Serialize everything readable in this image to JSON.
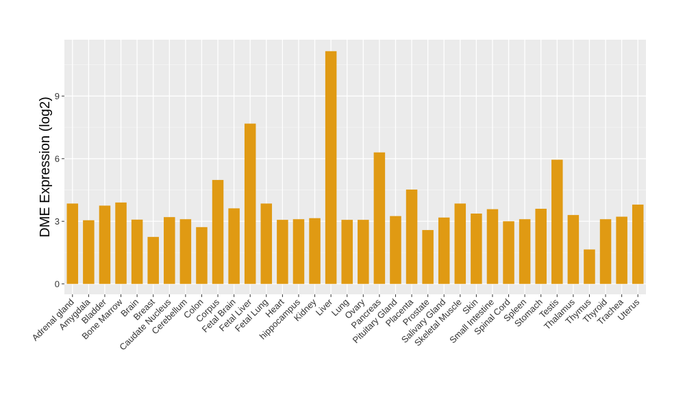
{
  "chart_data": {
    "type": "bar",
    "ylabel": "DME Expression (log2)",
    "xlabel": "",
    "title": "",
    "ylim": [
      -0.5,
      11.7
    ],
    "yticks": [
      0,
      3,
      6,
      9
    ],
    "grid": true,
    "legend": "none",
    "bar_color": "#E09A13",
    "panel_color": "#EBEBEB",
    "categories": [
      "Adrenal gland",
      "Amygdala",
      "Bladder",
      "Bone Marrow",
      "Brain",
      "Breast",
      "Caudate Nucleus",
      "Cerebellum",
      "Colon",
      "Corpus",
      "Fetal Brain",
      "Fetal Liver",
      "Fetal Lung",
      "Heart",
      "hippocampus",
      "Kidney",
      "Liver",
      "Lung",
      "Ovary",
      "Pancreas",
      "Pituitary Gland",
      "Placenta",
      "Prostate",
      "Salivary Gland",
      "Skeletal Muscle",
      "Skin",
      "Small Intestine",
      "Spinal Cord",
      "Spleen",
      "Stomach",
      "Testis",
      "Thalamus",
      "Thymus",
      "Thyroid",
      "Trachea",
      "Uterus"
    ],
    "values": [
      3.85,
      3.05,
      3.75,
      3.9,
      3.08,
      2.25,
      3.2,
      3.1,
      2.72,
      4.98,
      3.62,
      7.68,
      3.85,
      3.07,
      3.1,
      3.15,
      11.15,
      3.07,
      3.07,
      6.3,
      3.25,
      4.52,
      2.58,
      3.18,
      3.85,
      3.37,
      3.58,
      3.0,
      3.1,
      3.6,
      5.95,
      3.3,
      1.65,
      3.1,
      3.22,
      3.8
    ]
  }
}
